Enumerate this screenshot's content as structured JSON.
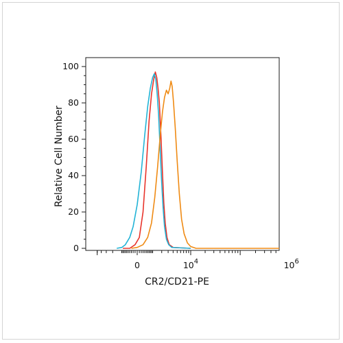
{
  "chart_data": {
    "type": "line",
    "title": "",
    "xlabel": "CR2/CD21-PE",
    "ylabel": "Relative Cell Number",
    "x_scale": "biexponential",
    "xlim": [
      -5000,
      7000000
    ],
    "ylim": [
      0,
      100
    ],
    "y_ticks": [
      0,
      20,
      40,
      60,
      80,
      100
    ],
    "x_tick_labels": [
      {
        "value": 0,
        "base": "0",
        "exp": ""
      },
      {
        "value": 10000,
        "base": "10",
        "exp": "4"
      },
      {
        "value": 1000000,
        "base": "10",
        "exp": "6"
      }
    ],
    "grid": false,
    "legend": "none",
    "series": [
      {
        "color": "#e8332a",
        "points": [
          [
            -900,
            0
          ],
          [
            -400,
            0
          ],
          [
            -100,
            2
          ],
          [
            100,
            6
          ],
          [
            300,
            20
          ],
          [
            500,
            45
          ],
          [
            700,
            70
          ],
          [
            900,
            85
          ],
          [
            1100,
            93
          ],
          [
            1250,
            97
          ],
          [
            1400,
            94
          ],
          [
            1550,
            88
          ],
          [
            1700,
            80
          ],
          [
            1900,
            62
          ],
          [
            2100,
            42
          ],
          [
            2300,
            25
          ],
          [
            2500,
            14
          ],
          [
            2800,
            6
          ],
          [
            3200,
            2
          ],
          [
            4000,
            0.5
          ],
          [
            10000,
            0
          ]
        ]
      },
      {
        "color": "#22b3d6",
        "points": [
          [
            -1500,
            0
          ],
          [
            -1000,
            0.5
          ],
          [
            -700,
            2
          ],
          [
            -400,
            6
          ],
          [
            -200,
            12
          ],
          [
            0,
            24
          ],
          [
            200,
            42
          ],
          [
            400,
            62
          ],
          [
            600,
            78
          ],
          [
            800,
            88
          ],
          [
            1000,
            94
          ],
          [
            1150,
            96
          ],
          [
            1300,
            93
          ],
          [
            1450,
            85
          ],
          [
            1600,
            74
          ],
          [
            1800,
            54
          ],
          [
            2000,
            36
          ],
          [
            2200,
            22
          ],
          [
            2400,
            12
          ],
          [
            2700,
            5
          ],
          [
            3100,
            2
          ],
          [
            3700,
            0.5
          ],
          [
            10000,
            0
          ]
        ]
      },
      {
        "color": "#ef8a13",
        "points": [
          [
            -300,
            0
          ],
          [
            0,
            0.5
          ],
          [
            300,
            2
          ],
          [
            600,
            6
          ],
          [
            900,
            14
          ],
          [
            1200,
            28
          ],
          [
            1500,
            45
          ],
          [
            1800,
            62
          ],
          [
            2100,
            75
          ],
          [
            2400,
            83
          ],
          [
            2700,
            87
          ],
          [
            3000,
            85
          ],
          [
            3300,
            88
          ],
          [
            3550,
            92
          ],
          [
            3800,
            89
          ],
          [
            4100,
            80
          ],
          [
            4500,
            66
          ],
          [
            5000,
            48
          ],
          [
            5600,
            30
          ],
          [
            6300,
            16
          ],
          [
            7200,
            8
          ],
          [
            8500,
            3
          ],
          [
            10000,
            1
          ],
          [
            13000,
            0
          ],
          [
            1000000,
            0
          ],
          [
            7000000,
            0
          ]
        ]
      }
    ]
  }
}
